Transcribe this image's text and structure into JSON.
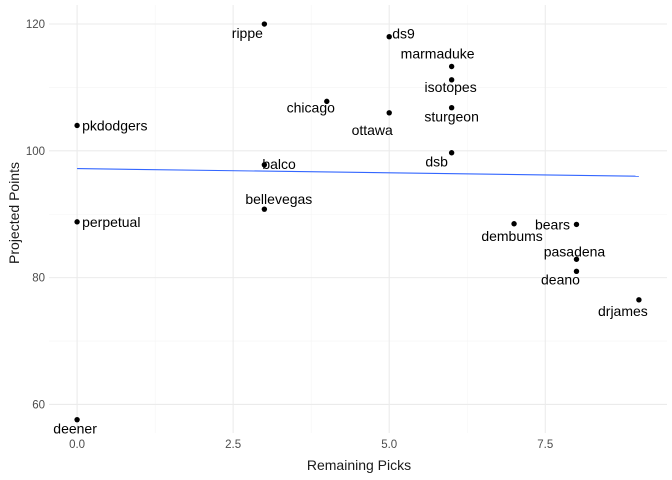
{
  "chart_data": {
    "type": "scatter",
    "title": "",
    "xlabel": "Remaining Picks",
    "ylabel": "Projected Points",
    "xlim": [
      -0.45,
      9.45
    ],
    "ylim": [
      55.5,
      123
    ],
    "x_ticks": [
      0.0,
      2.5,
      5.0,
      7.5
    ],
    "x_tick_labels": [
      "0.0",
      "2.5",
      "5.0",
      "7.5"
    ],
    "y_ticks": [
      60,
      80,
      100,
      120
    ],
    "y_tick_labels": [
      "60",
      "80",
      "100",
      "120"
    ],
    "grid": true,
    "legend": "none",
    "points": [
      {
        "label": "rippe",
        "x": 3,
        "y": 120.0
      },
      {
        "label": "ds9",
        "x": 5,
        "y": 118.0
      },
      {
        "label": "marmaduke",
        "x": 6,
        "y": 113.3
      },
      {
        "label": "isotopes",
        "x": 6,
        "y": 111.2
      },
      {
        "label": "chicago",
        "x": 4,
        "y": 107.8
      },
      {
        "label": "sturgeon",
        "x": 6,
        "y": 106.8
      },
      {
        "label": "ottawa",
        "x": 5,
        "y": 106.0
      },
      {
        "label": "pkdodgers",
        "x": 0,
        "y": 104.0
      },
      {
        "label": "dsb",
        "x": 6,
        "y": 99.7
      },
      {
        "label": "balco",
        "x": 3,
        "y": 97.8
      },
      {
        "label": "bellevegas",
        "x": 3,
        "y": 90.8
      },
      {
        "label": "perpetual",
        "x": 0,
        "y": 88.8
      },
      {
        "label": "dembums",
        "x": 7,
        "y": 88.5
      },
      {
        "label": "bears",
        "x": 8,
        "y": 88.4
      },
      {
        "label": "pasadena",
        "x": 8,
        "y": 82.9
      },
      {
        "label": "deano",
        "x": 8,
        "y": 81.0
      },
      {
        "label": "drjames",
        "x": 9,
        "y": 76.5
      },
      {
        "label": "deener",
        "x": 0,
        "y": 57.6
      }
    ],
    "trend_line": {
      "x": [
        0,
        9
      ],
      "y": [
        97.2,
        96.0
      ],
      "color": "#3366ff"
    },
    "point_color": "#000000",
    "grid_color": "#ebebeb"
  }
}
